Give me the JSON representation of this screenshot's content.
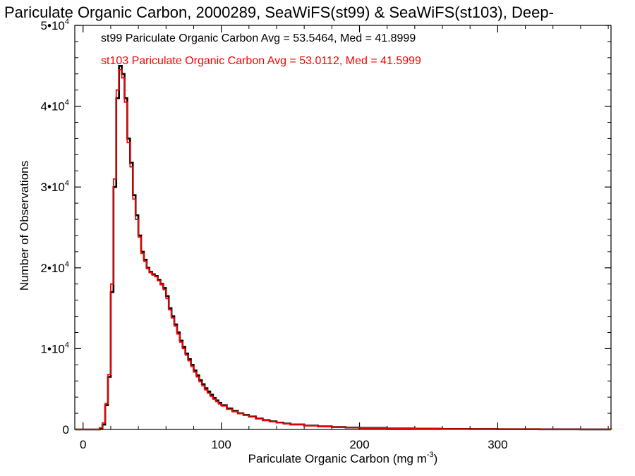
{
  "chart_data": {
    "type": "histogram-step",
    "title": "Pariculate Organic Carbon, 2000289, SeaWiFS(st99) & SeaWiFS(st103), Deep-",
    "xlabel": "Pariculate Organic Carbon (mg m",
    "xlabel_exp": "-3",
    "xlabel_tail": ")",
    "ylabel": "Number of Observations",
    "xlim": [
      -6,
      382
    ],
    "ylim": [
      0,
      50000
    ],
    "x_ticks": [
      0,
      100,
      200,
      300
    ],
    "x_tick_labels": [
      "0",
      "100",
      "200",
      "300"
    ],
    "y_ticks": [
      0,
      10000,
      20000,
      30000,
      40000,
      50000
    ],
    "y_tick_labels": [
      {
        "mant": "0",
        "exp": ""
      },
      {
        "mant": "1•10",
        "exp": "4"
      },
      {
        "mant": "2•10",
        "exp": "4"
      },
      {
        "mant": "3•10",
        "exp": "4"
      },
      {
        "mant": "4•10",
        "exp": "4"
      },
      {
        "mant": "5•10",
        "exp": "4"
      }
    ],
    "legend": [
      {
        "text": "st99 Pariculate Organic Carbon Avg = 53.5464, Med = 41.8999",
        "color": "#000000"
      },
      {
        "text": "st103 Pariculate Organic Carbon Avg = 53.0112, Med = 41.5999",
        "color": "#ff0000"
      }
    ],
    "legend_position": "top-left",
    "series": [
      {
        "name": "st99",
        "color": "#000000",
        "points": [
          [
            -6,
            0
          ],
          [
            10,
            0
          ],
          [
            12,
            150
          ],
          [
            14,
            600
          ],
          [
            16,
            3000
          ],
          [
            18,
            6500
          ],
          [
            20,
            17000
          ],
          [
            22,
            30000
          ],
          [
            24,
            41000
          ],
          [
            26,
            45000
          ],
          [
            28,
            44000
          ],
          [
            30,
            41000
          ],
          [
            32,
            36000
          ],
          [
            34,
            33000
          ],
          [
            36,
            29000
          ],
          [
            38,
            26500
          ],
          [
            40,
            24000
          ],
          [
            42,
            22000
          ],
          [
            44,
            21000
          ],
          [
            46,
            20000
          ],
          [
            48,
            19500
          ],
          [
            50,
            19200
          ],
          [
            52,
            19000
          ],
          [
            54,
            18500
          ],
          [
            56,
            18000
          ],
          [
            58,
            17500
          ],
          [
            60,
            16500
          ],
          [
            62,
            15000
          ],
          [
            64,
            14000
          ],
          [
            66,
            13000
          ],
          [
            68,
            12000
          ],
          [
            70,
            11000
          ],
          [
            72,
            10200
          ],
          [
            74,
            9400
          ],
          [
            76,
            8700
          ],
          [
            78,
            8000
          ],
          [
            80,
            7300
          ],
          [
            82,
            6700
          ],
          [
            84,
            6100
          ],
          [
            86,
            5600
          ],
          [
            88,
            5100
          ],
          [
            90,
            4700
          ],
          [
            92,
            4300
          ],
          [
            94,
            3900
          ],
          [
            96,
            3600
          ],
          [
            98,
            3300
          ],
          [
            100,
            3000
          ],
          [
            104,
            2600
          ],
          [
            108,
            2300
          ],
          [
            112,
            2000
          ],
          [
            116,
            1800
          ],
          [
            120,
            1600
          ],
          [
            125,
            1350
          ],
          [
            130,
            1150
          ],
          [
            135,
            1000
          ],
          [
            140,
            850
          ],
          [
            145,
            730
          ],
          [
            150,
            620
          ],
          [
            160,
            480
          ],
          [
            170,
            380
          ],
          [
            180,
            300
          ],
          [
            190,
            240
          ],
          [
            200,
            190
          ],
          [
            220,
            130
          ],
          [
            240,
            90
          ],
          [
            260,
            65
          ],
          [
            280,
            45
          ],
          [
            300,
            30
          ],
          [
            330,
            18
          ],
          [
            360,
            10
          ],
          [
            382,
            5
          ]
        ]
      },
      {
        "name": "st103",
        "color": "#ff0000",
        "points": [
          [
            -6,
            0
          ],
          [
            10,
            0
          ],
          [
            12,
            200
          ],
          [
            14,
            800
          ],
          [
            16,
            3200
          ],
          [
            18,
            6800
          ],
          [
            20,
            18000
          ],
          [
            22,
            31000
          ],
          [
            24,
            42000
          ],
          [
            26,
            44500
          ],
          [
            28,
            43500
          ],
          [
            30,
            40500
          ],
          [
            32,
            35500
          ],
          [
            34,
            32500
          ],
          [
            36,
            28500
          ],
          [
            38,
            26000
          ],
          [
            40,
            23800
          ],
          [
            42,
            21800
          ],
          [
            44,
            20800
          ],
          [
            46,
            19900
          ],
          [
            48,
            19400
          ],
          [
            50,
            19100
          ],
          [
            52,
            18900
          ],
          [
            54,
            18400
          ],
          [
            56,
            17900
          ],
          [
            58,
            17300
          ],
          [
            60,
            16200
          ],
          [
            62,
            14800
          ],
          [
            64,
            13800
          ],
          [
            66,
            12800
          ],
          [
            68,
            11800
          ],
          [
            70,
            10800
          ],
          [
            72,
            10000
          ],
          [
            74,
            9200
          ],
          [
            76,
            8500
          ],
          [
            78,
            7800
          ],
          [
            80,
            7100
          ],
          [
            82,
            6500
          ],
          [
            84,
            5900
          ],
          [
            86,
            5400
          ],
          [
            88,
            4900
          ],
          [
            90,
            4500
          ],
          [
            92,
            4100
          ],
          [
            94,
            3750
          ],
          [
            96,
            3450
          ],
          [
            98,
            3150
          ],
          [
            100,
            2900
          ],
          [
            104,
            2500
          ],
          [
            108,
            2200
          ],
          [
            112,
            1950
          ],
          [
            116,
            1750
          ],
          [
            120,
            1550
          ],
          [
            125,
            1300
          ],
          [
            130,
            1100
          ],
          [
            135,
            950
          ],
          [
            140,
            820
          ],
          [
            145,
            700
          ],
          [
            150,
            600
          ],
          [
            160,
            460
          ],
          [
            170,
            360
          ],
          [
            180,
            290
          ],
          [
            190,
            230
          ],
          [
            200,
            180
          ],
          [
            220,
            125
          ],
          [
            240,
            85
          ],
          [
            260,
            60
          ],
          [
            280,
            42
          ],
          [
            300,
            28
          ],
          [
            330,
            16
          ],
          [
            360,
            9
          ],
          [
            382,
            4
          ]
        ]
      }
    ],
    "grid": false
  }
}
